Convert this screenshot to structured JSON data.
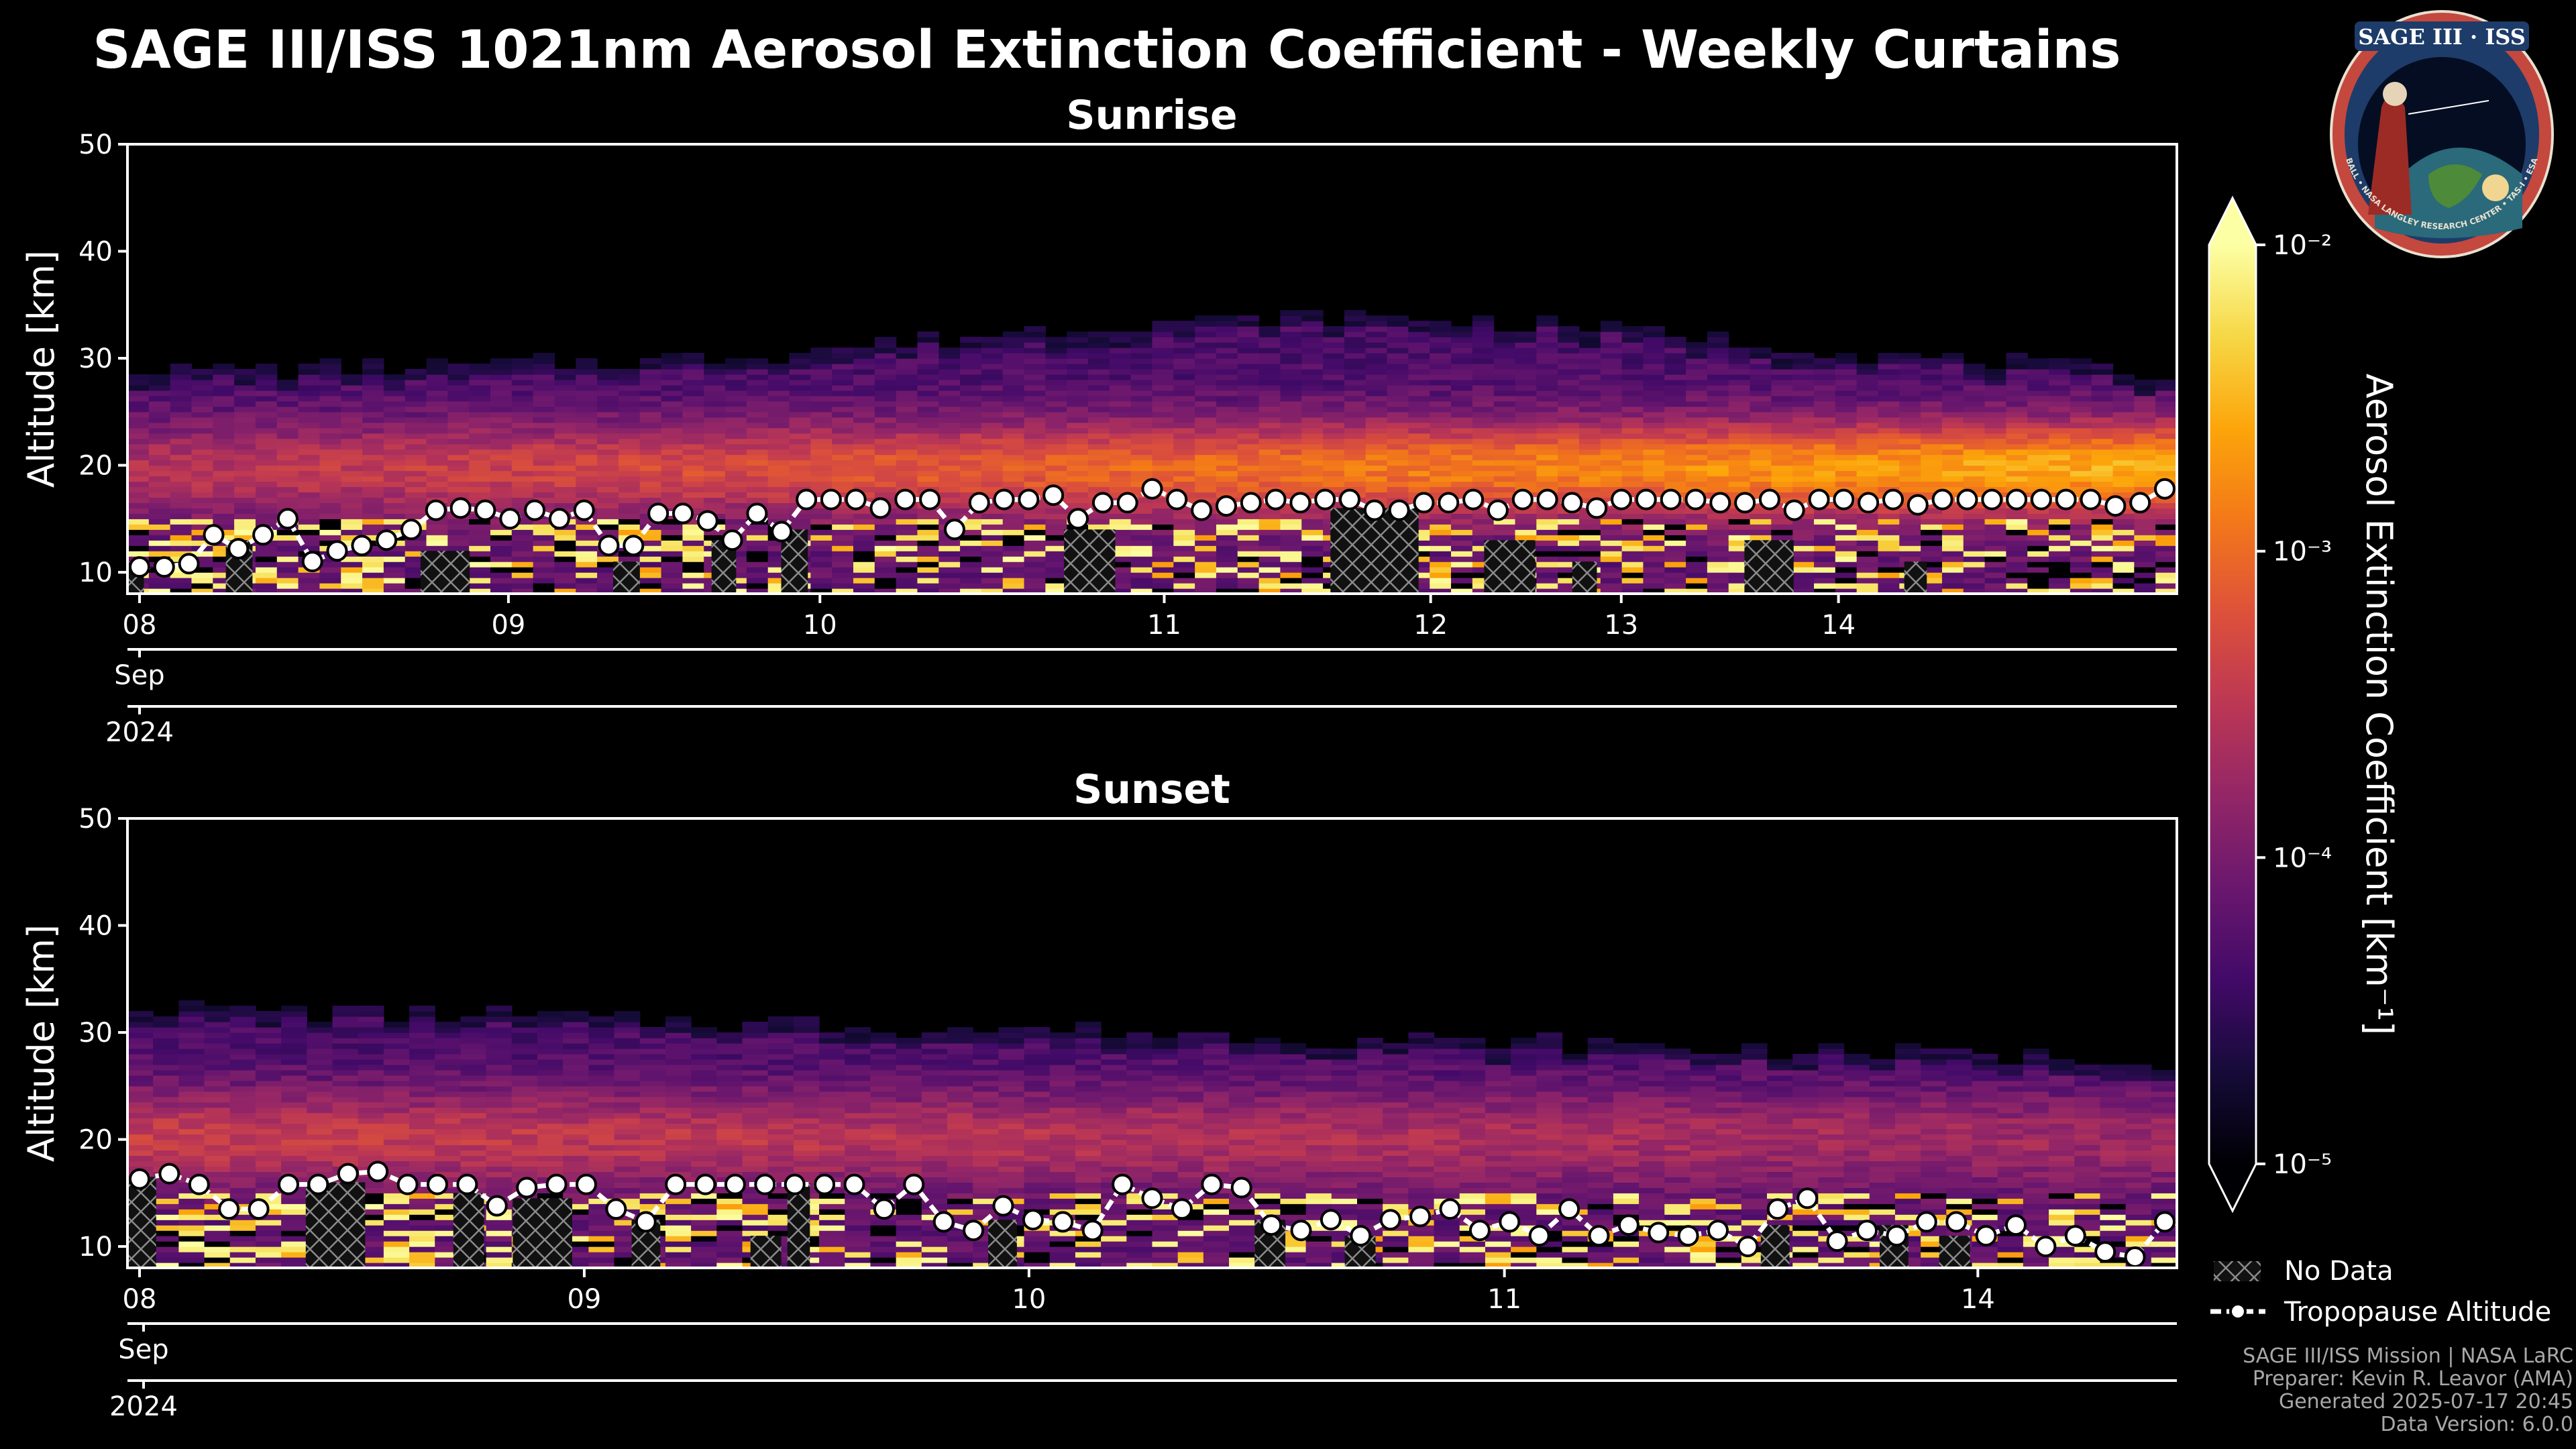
{
  "page": {
    "title": "SAGE III/ISS 1021nm Aerosol Extinction Coefficient - Weekly Curtains"
  },
  "colors": {
    "background": "#000000",
    "frame": "#ffffff",
    "text": "#ffffff",
    "footer_text": "#a8a8a8",
    "no_data_fill": "#111111",
    "hatch": "#8a8a8a",
    "tropopause": "#ffffff"
  },
  "chart_data": [
    {
      "type": "heatmap",
      "title": "Sunrise",
      "ylabel": "Altitude [km]",
      "ylim": [
        8,
        50
      ],
      "yticks": [
        10,
        20,
        30,
        40,
        50
      ],
      "xlim": [
        0,
        100
      ],
      "xticks": [
        {
          "label": "08",
          "x": 0
        },
        {
          "label": "09",
          "x": 18
        },
        {
          "label": "10",
          "x": 33.2
        },
        {
          "label": "11",
          "x": 50
        },
        {
          "label": "12",
          "x": 63
        },
        {
          "label": "13",
          "x": 72.3
        },
        {
          "label": "14",
          "x": 82.9
        }
      ],
      "month_label": "Sep",
      "year_label": "2024",
      "profiles": {
        "count": 96,
        "layer_top_km_start": 27.5,
        "layer_top_km_end": 26.5,
        "layer_top_km_peak": 33,
        "layer_top_peak_position": 0.6,
        "peak_layer_km": 19.5,
        "peak_intensity_start": 0.45,
        "peak_intensity_end": 0.8
      },
      "no_data_gaps": [
        {
          "x0": 0,
          "x1": 0.8,
          "top_km": 11
        },
        {
          "x0": 4.8,
          "x1": 6.1,
          "top_km": 13
        },
        {
          "x0": 14.3,
          "x1": 16.7,
          "top_km": 12
        },
        {
          "x0": 23.7,
          "x1": 25,
          "top_km": 11
        },
        {
          "x0": 28.5,
          "x1": 29.7,
          "top_km": 13
        },
        {
          "x0": 31.9,
          "x1": 33.2,
          "top_km": 14
        },
        {
          "x0": 45.7,
          "x1": 48.2,
          "top_km": 14
        },
        {
          "x0": 58.7,
          "x1": 63,
          "top_km": 16
        },
        {
          "x0": 66.2,
          "x1": 68.7,
          "top_km": 13
        },
        {
          "x0": 70.5,
          "x1": 71.7,
          "top_km": 11
        },
        {
          "x0": 78.9,
          "x1": 81.3,
          "top_km": 13
        },
        {
          "x0": 86.7,
          "x1": 87.8,
          "top_km": 11
        }
      ],
      "tropopause_km": [
        10.5,
        10.5,
        10.8,
        13.5,
        12.2,
        13.5,
        15.0,
        11.0,
        12.0,
        12.5,
        13.0,
        14.0,
        15.8,
        16.0,
        15.8,
        15.0,
        15.8,
        15.0,
        15.8,
        12.5,
        12.5,
        15.5,
        15.5,
        14.8,
        13.0,
        15.5,
        13.8,
        16.8,
        16.8,
        16.8,
        16.0,
        16.8,
        16.8,
        14.0,
        16.5,
        16.8,
        16.8,
        17.2,
        15.0,
        16.5,
        16.5,
        17.8,
        16.8,
        15.8,
        16.2,
        16.5,
        16.8,
        16.5,
        16.8,
        16.8,
        15.8,
        15.8,
        16.5,
        16.5,
        16.8,
        15.8,
        16.8,
        16.8,
        16.5,
        16.0,
        16.8,
        16.8,
        16.8,
        16.8,
        16.5,
        16.5,
        16.8,
        15.8,
        16.8,
        16.8,
        16.5,
        16.8,
        16.3,
        16.8,
        16.8,
        16.8,
        16.8,
        16.8,
        16.8,
        16.8,
        16.2,
        16.5,
        17.8
      ]
    },
    {
      "type": "heatmap",
      "title": "Sunset",
      "ylabel": "Altitude [km]",
      "ylim": [
        8,
        50
      ],
      "yticks": [
        10,
        20,
        30,
        40,
        50
      ],
      "xlim": [
        0,
        100
      ],
      "xticks": [
        {
          "label": "08",
          "x": 0
        },
        {
          "label": "09",
          "x": 21.7
        },
        {
          "label": "10",
          "x": 43.4
        },
        {
          "label": "11",
          "x": 66.6
        },
        {
          "label": "14",
          "x": 89.7
        }
      ],
      "month_label": "Sep",
      "year_label": "2024",
      "profiles": {
        "count": 80,
        "layer_top_km_start": 31,
        "layer_top_km_end": 26,
        "layer_top_km_peak": 31,
        "layer_top_peak_position": 0.1,
        "peak_layer_km": 20,
        "peak_intensity_start": 0.5,
        "peak_intensity_end": 0.4
      },
      "no_data_gaps": [
        {
          "x0": 0,
          "x1": 1.4,
          "top_km": 16.5
        },
        {
          "x0": 8.7,
          "x1": 11.6,
          "top_km": 16
        },
        {
          "x0": 15.9,
          "x1": 17.4,
          "top_km": 15
        },
        {
          "x0": 18.8,
          "x1": 21.7,
          "top_km": 14.5
        },
        {
          "x0": 24.6,
          "x1": 26,
          "top_km": 12.5
        },
        {
          "x0": 30.4,
          "x1": 31.9,
          "top_km": 11
        },
        {
          "x0": 32.2,
          "x1": 33.3,
          "top_km": 16
        },
        {
          "x0": 42,
          "x1": 43.4,
          "top_km": 12.5
        },
        {
          "x0": 55,
          "x1": 56.5,
          "top_km": 12.5
        },
        {
          "x0": 59.4,
          "x1": 60.9,
          "top_km": 11
        },
        {
          "x0": 79.7,
          "x1": 81.1,
          "top_km": 12
        },
        {
          "x0": 85.5,
          "x1": 86.9,
          "top_km": 12
        },
        {
          "x0": 88.4,
          "x1": 89.9,
          "top_km": 11
        }
      ],
      "tropopause_km": [
        16.3,
        16.8,
        15.8,
        13.5,
        13.5,
        15.8,
        15.8,
        16.8,
        17.0,
        15.8,
        15.8,
        15.8,
        13.8,
        15.5,
        15.8,
        15.8,
        13.5,
        12.3,
        15.8,
        15.8,
        15.8,
        15.8,
        15.8,
        15.8,
        15.8,
        13.5,
        15.8,
        12.3,
        11.5,
        13.8,
        12.5,
        12.3,
        11.5,
        15.8,
        14.5,
        13.5,
        15.8,
        15.5,
        12.0,
        11.5,
        12.5,
        11.0,
        12.5,
        12.8,
        13.5,
        11.5,
        12.3,
        11.0,
        13.5,
        11.0,
        12.0,
        11.3,
        11.0,
        11.5,
        10.0,
        13.5,
        14.5,
        10.5,
        11.5,
        11.0,
        12.3,
        12.3,
        11.0,
        12.0,
        10.0,
        11.0,
        9.5,
        9.0,
        12.3
      ]
    }
  ],
  "colorbar": {
    "label": "Aerosol Extinction Coefficient [km⁻¹]",
    "scale": "log",
    "vmin": 1e-05,
    "vmax": 0.01,
    "ticks": [
      {
        "label": "10⁻²",
        "value": 0.01
      },
      {
        "label": "10⁻³",
        "value": 0.001
      },
      {
        "label": "10⁻⁴",
        "value": 0.0001
      },
      {
        "label": "10⁻⁵",
        "value": 1e-05
      }
    ],
    "extend": "both"
  },
  "legend": {
    "no_data": "No Data",
    "tropopause": "Tropopause Altitude"
  },
  "logo": {
    "text": "SAGE III · ISS",
    "ring_text": "BALL • NASA LANGLEY RESEARCH CENTER • TAS-I • ESA"
  },
  "footer": {
    "line1": "SAGE III/ISS Mission | NASA LaRC",
    "line2": "Preparer: Kevin R. Leavor (AMA)",
    "line3": "Generated 2025-07-17 20:45",
    "line4": "Data Version: 6.0.0"
  }
}
